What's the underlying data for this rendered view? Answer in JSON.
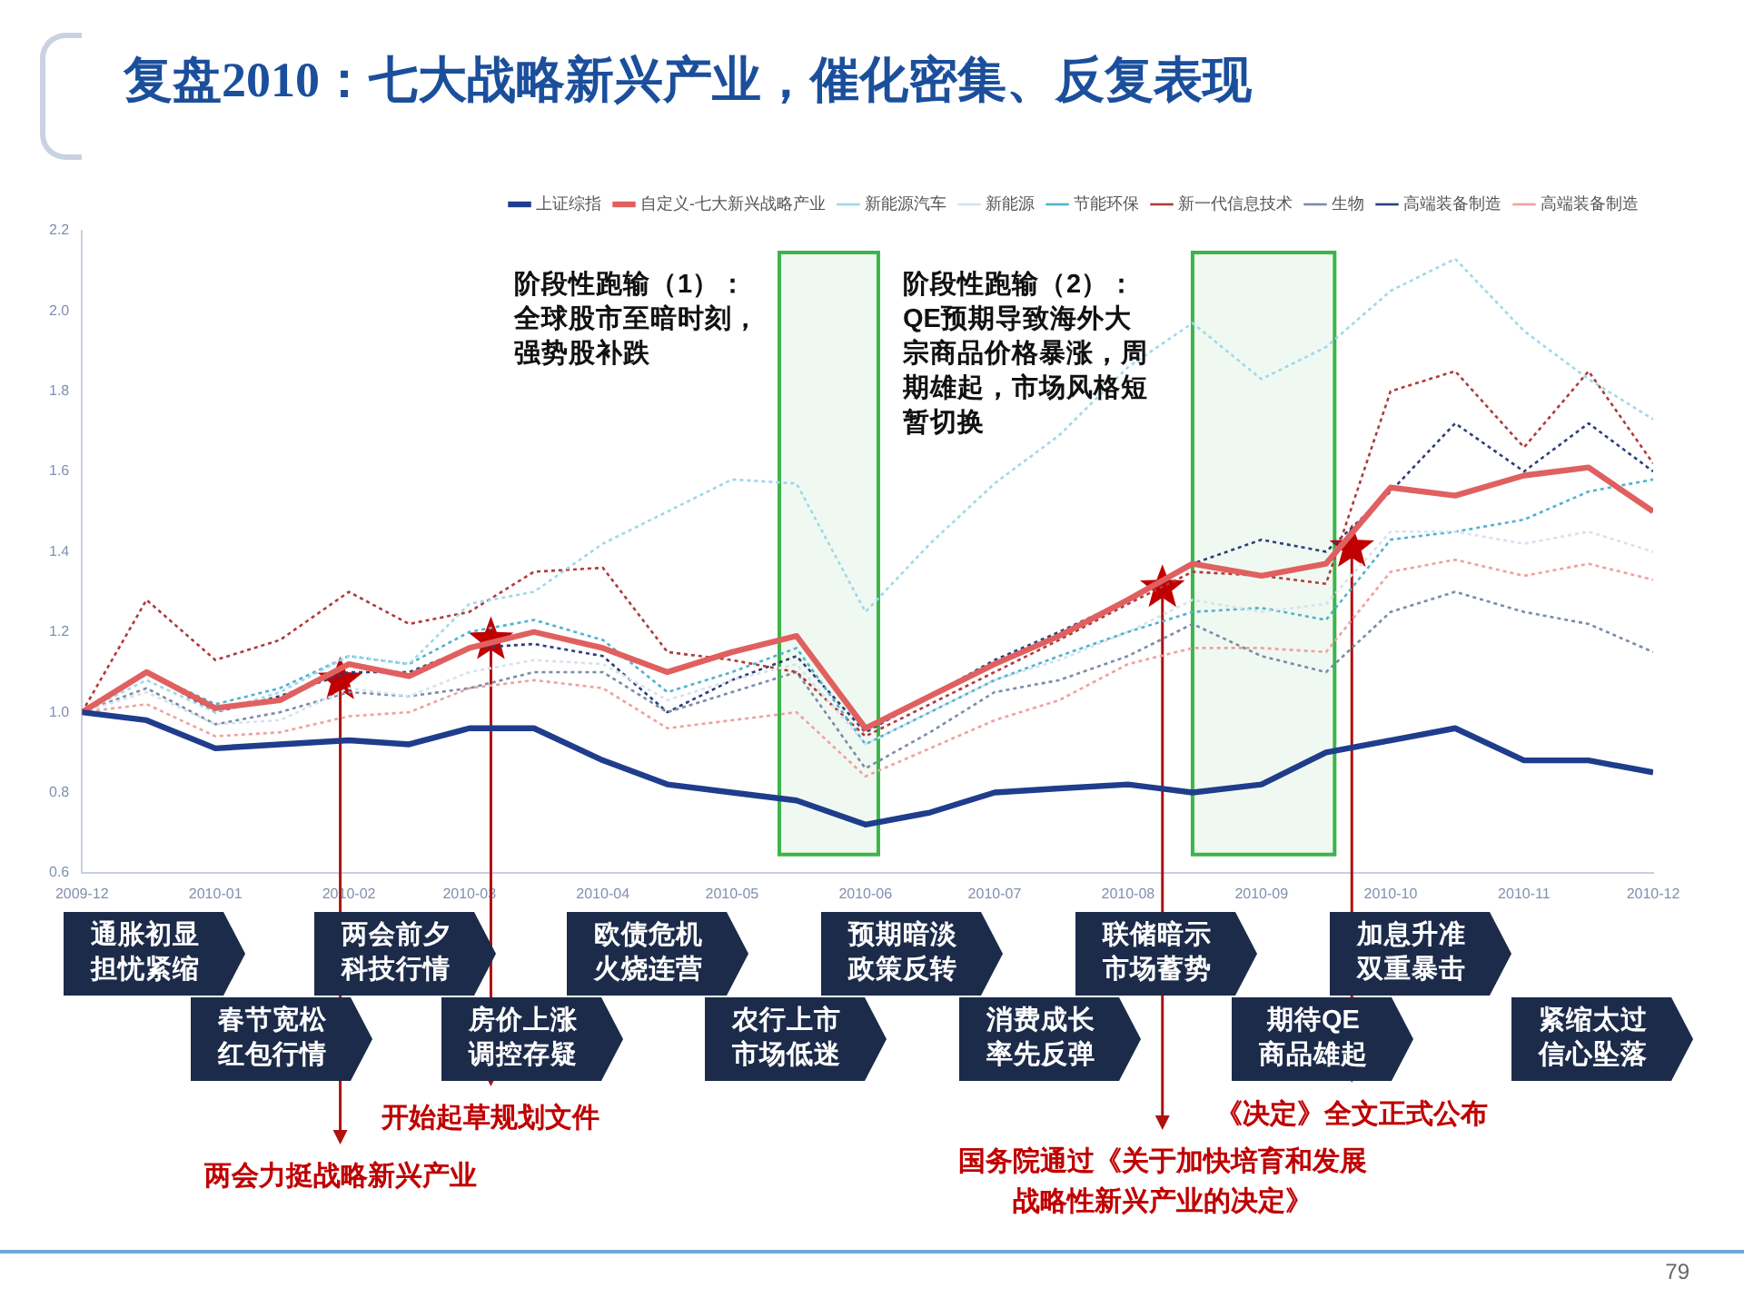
{
  "chart_data": {
    "type": "line",
    "title": "复盘2010：七大战略新兴产业，催化密集、反复表现",
    "x": [
      "2009-12-01",
      "2009-12-16",
      "2010-01-01",
      "2010-01-16",
      "2010-02-01",
      "2010-02-15",
      "2010-03-01",
      "2010-03-16",
      "2010-04-01",
      "2010-04-16",
      "2010-05-01",
      "2010-05-16",
      "2010-06-01",
      "2010-06-16",
      "2010-07-01",
      "2010-07-16",
      "2010-08-01",
      "2010-08-16",
      "2010-09-01",
      "2010-09-16",
      "2010-10-01",
      "2010-10-16",
      "2010-11-01",
      "2010-11-16",
      "2010-12-01"
    ],
    "xlim": [
      "2009-12",
      "2010-12"
    ],
    "xticks": [
      "2009-12",
      "2010-01",
      "2010-02",
      "2010-03",
      "2010-04",
      "2010-05",
      "2010-06",
      "2010-07",
      "2010-08",
      "2010-09",
      "2010-10",
      "2010-11",
      "2010-12"
    ],
    "ylim": [
      0.6,
      2.2
    ],
    "yticks": [
      0.6,
      0.8,
      {
        "value": 1,
        "label": "1.0"
      },
      1.2,
      1.4,
      1.6,
      1.8,
      {
        "value": 2,
        "label": "2.0"
      },
      2.2
    ],
    "legend": "top",
    "marker": "none",
    "series": [
      {
        "name": "上证综指",
        "color": "#1f3d8c",
        "line_style": "solid",
        "values": [
          1.0,
          0.98,
          0.91,
          0.92,
          0.93,
          0.92,
          0.96,
          0.96,
          0.88,
          0.82,
          0.8,
          0.78,
          0.72,
          0.75,
          0.8,
          0.81,
          0.82,
          0.8,
          0.82,
          0.9,
          0.93,
          0.96,
          0.88,
          0.88,
          0.85
        ]
      },
      {
        "name": "自定义-七大新兴战略产业",
        "color": "#e06060",
        "line_style": "solid",
        "values": [
          1.0,
          1.1,
          1.01,
          1.03,
          1.12,
          1.09,
          1.16,
          1.2,
          1.16,
          1.1,
          1.15,
          1.19,
          0.96,
          1.04,
          1.12,
          1.19,
          1.28,
          1.37,
          1.34,
          1.37,
          1.56,
          1.54,
          1.59,
          1.61,
          1.5
        ]
      },
      {
        "name": "新能源汽车",
        "color": "#9fd8ea",
        "line_style": "dotted",
        "values": [
          1.0,
          1.08,
          1.0,
          1.05,
          1.14,
          1.12,
          1.27,
          1.3,
          1.42,
          1.5,
          1.58,
          1.57,
          1.25,
          1.42,
          1.57,
          1.69,
          1.86,
          1.97,
          1.83,
          1.91,
          2.05,
          2.13,
          1.95,
          1.83,
          1.73
        ]
      },
      {
        "name": "新能源",
        "color": "#d6e2ee",
        "line_style": "dotted",
        "values": [
          1.0,
          1.05,
          0.97,
          0.98,
          1.06,
          1.04,
          1.1,
          1.13,
          1.12,
          1.03,
          1.08,
          1.12,
          0.92,
          1.0,
          1.08,
          1.13,
          1.2,
          1.28,
          1.25,
          1.27,
          1.45,
          1.45,
          1.42,
          1.45,
          1.4
        ]
      },
      {
        "name": "节能环保",
        "color": "#4fb3cf",
        "line_style": "dotted",
        "values": [
          1.0,
          1.1,
          1.02,
          1.06,
          1.14,
          1.12,
          1.2,
          1.23,
          1.18,
          1.05,
          1.1,
          1.16,
          0.92,
          1.0,
          1.08,
          1.14,
          1.2,
          1.25,
          1.26,
          1.23,
          1.43,
          1.45,
          1.48,
          1.55,
          1.58
        ]
      },
      {
        "name": "新一代信息技术",
        "color": "#b03a3a",
        "line_style": "dotted",
        "values": [
          1.0,
          1.28,
          1.13,
          1.18,
          1.3,
          1.22,
          1.25,
          1.35,
          1.36,
          1.15,
          1.13,
          1.1,
          0.94,
          1.02,
          1.1,
          1.18,
          1.27,
          1.35,
          1.34,
          1.32,
          1.8,
          1.85,
          1.66,
          1.85,
          1.62
        ]
      },
      {
        "name": "生物",
        "color": "#7a8ca8",
        "line_style": "dotted",
        "values": [
          1.0,
          1.06,
          0.97,
          1.0,
          1.05,
          1.04,
          1.06,
          1.1,
          1.1,
          1.0,
          1.05,
          1.1,
          0.86,
          0.95,
          1.05,
          1.08,
          1.14,
          1.22,
          1.14,
          1.1,
          1.25,
          1.3,
          1.25,
          1.22,
          1.15
        ]
      },
      {
        "name": "高端装备制造",
        "color": "#2c3f7a",
        "line_style": "dotted",
        "values": [
          1.0,
          1.1,
          1.0,
          1.04,
          1.1,
          1.1,
          1.16,
          1.17,
          1.14,
          1.0,
          1.08,
          1.14,
          0.95,
          1.04,
          1.13,
          1.2,
          1.28,
          1.37,
          1.43,
          1.4,
          1.55,
          1.72,
          1.6,
          1.72,
          1.6
        ]
      },
      {
        "name": "高端装备制造",
        "color": "#f0a0a0",
        "line_style": "dotted",
        "values": [
          1.0,
          1.02,
          0.94,
          0.95,
          0.99,
          1.0,
          1.06,
          1.08,
          1.06,
          0.96,
          0.98,
          1.0,
          0.84,
          0.91,
          0.98,
          1.03,
          1.12,
          1.16,
          1.16,
          1.15,
          1.35,
          1.38,
          1.34,
          1.37,
          1.33
        ]
      }
    ],
    "bands": [
      {
        "axis": "x",
        "from": "2010-05-12",
        "to": "2010-06-04",
        "color": "#3cb54a"
      },
      {
        "axis": "x",
        "from": "2010-08-16",
        "to": "2010-09-18",
        "color": "#3cb54a"
      }
    ],
    "annotations": [
      "阶段性跑输（1）：全球股市至暗时刻，强势股补跌",
      "阶段性跑输（2）：QE预期导致海外大宗商品价格暴涨，周期雄起，市场风格短暂切换",
      "通胀初显担忧紧缩",
      "春节宽松红包行情",
      "两会前夕科技行情",
      "房价上涨调控存疑",
      "欧债危机火烧连营",
      "农行上市市场低迷",
      "预期暗淡政策反转",
      "消费成长率先反弹",
      "联储暗示市场蓄势",
      "期待QE商品雄起",
      "加息升准双重暴击",
      "紧缩太过信心坠落",
      {
        "text": "两会力挺战略新兴产业",
        "x": "2010-01-30",
        "y": 1.08
      },
      {
        "text": "开始起草规划文件",
        "x": "2010-03-06",
        "y": 1.18
      },
      {
        "text": "国务院通过《关于加快培育和发展战略性新兴产业的决定》",
        "x": "2010-08-09",
        "y": 1.31
      },
      {
        "text": "《决定》全文正式公布",
        "x": "2010-09-22",
        "y": 1.41
      },
      "79"
    ]
  }
}
